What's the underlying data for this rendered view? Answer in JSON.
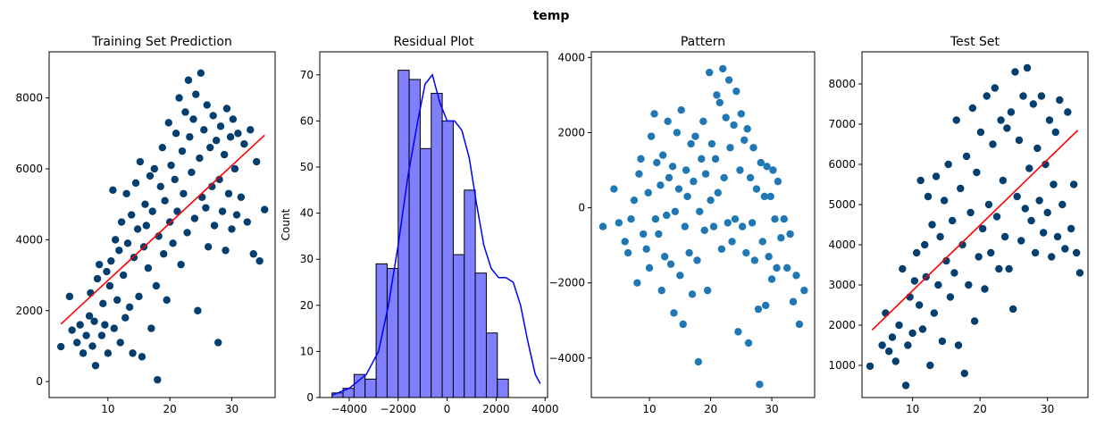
{
  "figure_title": "temp",
  "chart_data": [
    {
      "id": "training",
      "type": "scatter",
      "title": "Training Set Prediction",
      "xlabel": "",
      "ylabel": "",
      "xlim": [
        0.5,
        37
      ],
      "ylim": [
        -450,
        9300
      ],
      "xticks": [
        10,
        20,
        30
      ],
      "yticks": [
        0,
        2000,
        4000,
        6000,
        8000
      ],
      "point_color": "#023e6e",
      "line_color": "#ff0000",
      "fit_line": {
        "x": [
          2.4,
          35.3
        ],
        "y": [
          1620,
          6950
        ]
      },
      "points": [
        [
          2.4,
          985
        ],
        [
          3.8,
          2400
        ],
        [
          4.2,
          1450
        ],
        [
          5.0,
          1100
        ],
        [
          5.5,
          1600
        ],
        [
          6.0,
          800
        ],
        [
          6.5,
          1300
        ],
        [
          7.0,
          1850
        ],
        [
          7.2,
          2500
        ],
        [
          7.5,
          1000
        ],
        [
          7.8,
          1700
        ],
        [
          8.0,
          450
        ],
        [
          8.3,
          2900
        ],
        [
          8.6,
          3300
        ],
        [
          9.0,
          1300
        ],
        [
          9.2,
          2200
        ],
        [
          9.5,
          1600
        ],
        [
          9.8,
          3100
        ],
        [
          10.0,
          800
        ],
        [
          10.3,
          2700
        ],
        [
          10.5,
          3400
        ],
        [
          10.8,
          5400
        ],
        [
          11.0,
          1500
        ],
        [
          11.2,
          4000
        ],
        [
          11.5,
          2300
        ],
        [
          11.8,
          3700
        ],
        [
          12.0,
          1100
        ],
        [
          12.2,
          4500
        ],
        [
          12.5,
          3000
        ],
        [
          12.8,
          1800
        ],
        [
          13.0,
          5300
        ],
        [
          13.2,
          3900
        ],
        [
          13.5,
          2100
        ],
        [
          13.8,
          4700
        ],
        [
          14.0,
          800
        ],
        [
          14.2,
          3500
        ],
        [
          14.5,
          5600
        ],
        [
          14.8,
          4300
        ],
        [
          15.0,
          2400
        ],
        [
          15.2,
          6200
        ],
        [
          15.5,
          700
        ],
        [
          15.8,
          3800
        ],
        [
          16.0,
          5000
        ],
        [
          16.2,
          4400
        ],
        [
          16.5,
          3200
        ],
        [
          16.8,
          5800
        ],
        [
          17.0,
          1500
        ],
        [
          17.2,
          4800
        ],
        [
          17.5,
          6000
        ],
        [
          17.8,
          2700
        ],
        [
          18.0,
          50
        ],
        [
          18.2,
          4100
        ],
        [
          18.5,
          5500
        ],
        [
          18.8,
          6600
        ],
        [
          19.0,
          3600
        ],
        [
          19.2,
          5100
        ],
        [
          19.5,
          2300
        ],
        [
          19.8,
          7300
        ],
        [
          20.0,
          4500
        ],
        [
          20.2,
          6100
        ],
        [
          20.5,
          3900
        ],
        [
          20.8,
          5700
        ],
        [
          21.0,
          7000
        ],
        [
          21.2,
          4800
        ],
        [
          21.5,
          8000
        ],
        [
          21.8,
          3300
        ],
        [
          22.0,
          6500
        ],
        [
          22.2,
          5300
        ],
        [
          22.5,
          7600
        ],
        [
          22.8,
          4200
        ],
        [
          23.0,
          8500
        ],
        [
          23.2,
          6900
        ],
        [
          23.5,
          5900
        ],
        [
          23.8,
          7400
        ],
        [
          24.0,
          4600
        ],
        [
          24.2,
          8100
        ],
        [
          24.5,
          2000
        ],
        [
          24.8,
          6300
        ],
        [
          25.0,
          8700
        ],
        [
          25.2,
          5200
        ],
        [
          25.5,
          7100
        ],
        [
          25.8,
          4900
        ],
        [
          26.0,
          7800
        ],
        [
          26.2,
          3800
        ],
        [
          26.5,
          6600
        ],
        [
          26.8,
          5500
        ],
        [
          27.0,
          7500
        ],
        [
          27.2,
          4400
        ],
        [
          27.5,
          6800
        ],
        [
          27.8,
          1100
        ],
        [
          28.0,
          5700
        ],
        [
          28.2,
          7200
        ],
        [
          28.5,
          4800
        ],
        [
          28.8,
          6400
        ],
        [
          29.0,
          3700
        ],
        [
          29.2,
          7700
        ],
        [
          29.5,
          5300
        ],
        [
          29.8,
          6900
        ],
        [
          30.0,
          4300
        ],
        [
          30.2,
          7400
        ],
        [
          30.5,
          6000
        ],
        [
          30.8,
          4700
        ],
        [
          31.0,
          7000
        ],
        [
          31.5,
          5200
        ],
        [
          32.0,
          6700
        ],
        [
          32.5,
          4500
        ],
        [
          33.0,
          7100
        ],
        [
          33.5,
          3600
        ],
        [
          34.0,
          6200
        ],
        [
          34.5,
          3400
        ],
        [
          35.3,
          4850
        ]
      ]
    },
    {
      "id": "residual",
      "type": "bar",
      "title": "Residual Plot",
      "xlabel": "",
      "ylabel": "Count",
      "xlim": [
        -5200,
        4100
      ],
      "ylim": [
        0,
        75
      ],
      "xticks": [
        -4000,
        -2000,
        0,
        2000,
        4000
      ],
      "yticks": [
        0,
        10,
        20,
        30,
        40,
        50,
        60,
        70
      ],
      "bar_color": "#7f7fff",
      "kde_color": "#0000ff",
      "bin_edges": [
        -4700,
        -4250,
        -3800,
        -3350,
        -2900,
        -2450,
        -2000,
        -1550,
        -1100,
        -650,
        -200,
        250,
        700,
        1150,
        1600,
        2050,
        2500,
        2950,
        3400,
        3850
      ],
      "counts": [
        1,
        2,
        5,
        4,
        29,
        28,
        71,
        69,
        54,
        66,
        60,
        31,
        45,
        27,
        14,
        4,
        0,
        0,
        0
      ],
      "kde": {
        "x": [
          -4700,
          -4000,
          -3300,
          -2800,
          -2400,
          -2000,
          -1600,
          -1200,
          -900,
          -600,
          -300,
          0,
          300,
          600,
          900,
          1200,
          1500,
          1800,
          2100,
          2400,
          2700,
          3000,
          3300,
          3600,
          3800
        ],
        "y": [
          0.5,
          2,
          5,
          10,
          20,
          33,
          48,
          60,
          68,
          70,
          64,
          60,
          60,
          58,
          52,
          42,
          33,
          28,
          26,
          26,
          25,
          20,
          12,
          5,
          3
        ]
      }
    },
    {
      "id": "pattern",
      "type": "scatter",
      "title": "Pattern",
      "xlabel": "",
      "ylabel": "",
      "xlim": [
        0.5,
        37
      ],
      "ylim": [
        -5050,
        4150
      ],
      "xticks": [
        10,
        20,
        30
      ],
      "yticks": [
        -4000,
        -2000,
        0,
        2000,
        4000
      ],
      "point_color": "#1f77b4",
      "points": [
        [
          2.4,
          -500
        ],
        [
          4.2,
          500
        ],
        [
          5.0,
          -400
        ],
        [
          6.0,
          -900
        ],
        [
          6.5,
          -1200
        ],
        [
          7.0,
          -300
        ],
        [
          7.5,
          200
        ],
        [
          8.0,
          -2000
        ],
        [
          8.3,
          900
        ],
        [
          8.6,
          1300
        ],
        [
          9.0,
          -700
        ],
        [
          9.5,
          -1100
        ],
        [
          9.8,
          400
        ],
        [
          10.0,
          -1600
        ],
        [
          10.3,
          1900
        ],
        [
          10.8,
          2500
        ],
        [
          11.0,
          -300
        ],
        [
          11.2,
          1200
        ],
        [
          11.5,
          -700
        ],
        [
          11.8,
          600
        ],
        [
          12.0,
          -2200
        ],
        [
          12.2,
          1400
        ],
        [
          12.5,
          -1300
        ],
        [
          12.8,
          -200
        ],
        [
          13.0,
          2300
        ],
        [
          13.2,
          800
        ],
        [
          13.5,
          -1500
        ],
        [
          13.8,
          1100
        ],
        [
          14.0,
          -2800
        ],
        [
          14.2,
          -100
        ],
        [
          14.5,
          2000
        ],
        [
          14.8,
          500
        ],
        [
          15.0,
          -1800
        ],
        [
          15.2,
          2600
        ],
        [
          15.5,
          -3100
        ],
        [
          15.8,
          -500
        ],
        [
          16.0,
          1000
        ],
        [
          16.2,
          300
        ],
        [
          16.5,
          -1200
        ],
        [
          16.8,
          1700
        ],
        [
          17.0,
          -2300
        ],
        [
          17.2,
          700
        ],
        [
          17.5,
          1900
        ],
        [
          17.8,
          -1400
        ],
        [
          18.0,
          -4100
        ],
        [
          18.2,
          -100
        ],
        [
          18.5,
          1300
        ],
        [
          18.8,
          2300
        ],
        [
          19.0,
          -600
        ],
        [
          19.2,
          900
        ],
        [
          19.5,
          -2200
        ],
        [
          19.8,
          3600
        ],
        [
          20.0,
          200
        ],
        [
          20.2,
          1700
        ],
        [
          20.5,
          -500
        ],
        [
          20.8,
          1300
        ],
        [
          21.0,
          3000
        ],
        [
          21.2,
          400
        ],
        [
          21.5,
          2800
        ],
        [
          21.8,
          -1100
        ],
        [
          22.0,
          3700
        ],
        [
          22.2,
          800
        ],
        [
          22.5,
          2400
        ],
        [
          22.8,
          -400
        ],
        [
          23.0,
          3400
        ],
        [
          23.2,
          1600
        ],
        [
          23.5,
          -900
        ],
        [
          23.8,
          2200
        ],
        [
          24.0,
          -300
        ],
        [
          24.2,
          3100
        ],
        [
          24.5,
          -3300
        ],
        [
          24.8,
          1000
        ],
        [
          25.0,
          2500
        ],
        [
          25.2,
          -500
        ],
        [
          25.5,
          1800
        ],
        [
          25.8,
          -1200
        ],
        [
          26.0,
          2100
        ],
        [
          26.2,
          -3600
        ],
        [
          26.5,
          800
        ],
        [
          26.8,
          -400
        ],
        [
          27.0,
          1600
        ],
        [
          27.2,
          -1400
        ],
        [
          27.5,
          500
        ],
        [
          27.8,
          -2700
        ],
        [
          28.0,
          -4700
        ],
        [
          28.2,
          1200
        ],
        [
          28.5,
          -900
        ],
        [
          28.8,
          300
        ],
        [
          29.0,
          -2600
        ],
        [
          29.2,
          1100
        ],
        [
          29.5,
          -1300
        ],
        [
          29.8,
          300
        ],
        [
          30.0,
          -1900
        ],
        [
          30.2,
          1000
        ],
        [
          30.5,
          -300
        ],
        [
          30.8,
          -1600
        ],
        [
          31.0,
          700
        ],
        [
          31.5,
          -800
        ],
        [
          32.0,
          -300
        ],
        [
          32.5,
          -1600
        ],
        [
          33.0,
          -700
        ],
        [
          33.5,
          -2500
        ],
        [
          34.0,
          -1800
        ],
        [
          34.5,
          -3100
        ],
        [
          35.3,
          -2200
        ]
      ]
    },
    {
      "id": "test",
      "type": "scatter",
      "title": "Test Set",
      "xlabel": "",
      "ylabel": "",
      "xlim": [
        2.5,
        36
      ],
      "ylim": [
        200,
        8800
      ],
      "xticks": [
        10,
        20,
        30
      ],
      "yticks": [
        1000,
        2000,
        3000,
        4000,
        5000,
        6000,
        7000,
        8000
      ],
      "point_color": "#023e6e",
      "line_color": "#ff0000",
      "fit_line": {
        "x": [
          4.0,
          34.5
        ],
        "y": [
          1880,
          6850
        ]
      },
      "points": [
        [
          3.7,
          980
        ],
        [
          5.5,
          1500
        ],
        [
          6.0,
          2300
        ],
        [
          6.5,
          1350
        ],
        [
          7.0,
          1700
        ],
        [
          7.5,
          1100
        ],
        [
          8.0,
          2000
        ],
        [
          8.5,
          3400
        ],
        [
          9.0,
          500
        ],
        [
          9.3,
          1500
        ],
        [
          9.6,
          2700
        ],
        [
          10.0,
          1800
        ],
        [
          10.3,
          3100
        ],
        [
          10.6,
          3800
        ],
        [
          11.0,
          2500
        ],
        [
          11.2,
          5600
        ],
        [
          11.5,
          1900
        ],
        [
          11.8,
          4000
        ],
        [
          12.0,
          3200
        ],
        [
          12.3,
          5200
        ],
        [
          12.6,
          1000
        ],
        [
          12.9,
          4500
        ],
        [
          13.2,
          2300
        ],
        [
          13.5,
          5700
        ],
        [
          13.8,
          3000
        ],
        [
          14.1,
          4200
        ],
        [
          14.4,
          1600
        ],
        [
          14.7,
          5100
        ],
        [
          15.0,
          3600
        ],
        [
          15.3,
          6000
        ],
        [
          15.6,
          2700
        ],
        [
          15.9,
          4600
        ],
        [
          16.2,
          3300
        ],
        [
          16.5,
          7100
        ],
        [
          16.8,
          1500
        ],
        [
          17.1,
          5400
        ],
        [
          17.4,
          4000
        ],
        [
          17.7,
          800
        ],
        [
          18.0,
          6200
        ],
        [
          18.3,
          3000
        ],
        [
          18.6,
          4800
        ],
        [
          18.9,
          7400
        ],
        [
          19.2,
          2100
        ],
        [
          19.5,
          5800
        ],
        [
          19.8,
          3700
        ],
        [
          20.1,
          6800
        ],
        [
          20.4,
          4400
        ],
        [
          20.7,
          2900
        ],
        [
          21.0,
          7700
        ],
        [
          21.3,
          5000
        ],
        [
          21.6,
          3800
        ],
        [
          21.9,
          6500
        ],
        [
          22.2,
          7900
        ],
        [
          22.5,
          4700
        ],
        [
          22.8,
          3400
        ],
        [
          23.1,
          7100
        ],
        [
          23.4,
          5600
        ],
        [
          23.7,
          4200
        ],
        [
          24.0,
          6900
        ],
        [
          24.3,
          3400
        ],
        [
          24.6,
          7300
        ],
        [
          24.9,
          2400
        ],
        [
          25.2,
          8300
        ],
        [
          25.5,
          5200
        ],
        [
          25.8,
          6600
        ],
        [
          26.1,
          4100
        ],
        [
          26.4,
          7700
        ],
        [
          26.7,
          4900
        ],
        [
          27.0,
          8400
        ],
        [
          27.3,
          5900
        ],
        [
          27.6,
          4600
        ],
        [
          27.9,
          7500
        ],
        [
          28.2,
          3800
        ],
        [
          28.5,
          6400
        ],
        [
          28.8,
          5100
        ],
        [
          29.1,
          7700
        ],
        [
          29.4,
          4300
        ],
        [
          29.7,
          6000
        ],
        [
          30.0,
          4800
        ],
        [
          30.3,
          7100
        ],
        [
          30.6,
          3700
        ],
        [
          30.9,
          5500
        ],
        [
          31.2,
          6800
        ],
        [
          31.5,
          4200
        ],
        [
          31.8,
          7600
        ],
        [
          32.2,
          5000
        ],
        [
          32.6,
          3900
        ],
        [
          33.0,
          7300
        ],
        [
          33.5,
          4400
        ],
        [
          33.9,
          5500
        ],
        [
          34.3,
          3800
        ],
        [
          34.8,
          3300
        ]
      ]
    }
  ]
}
